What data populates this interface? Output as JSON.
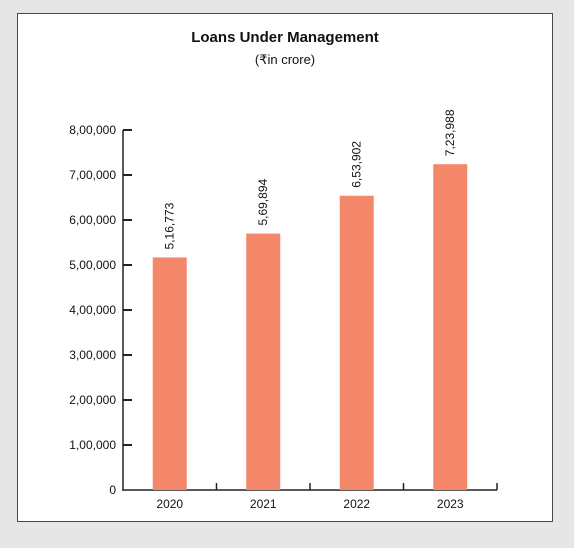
{
  "chart_data": {
    "type": "bar",
    "title": "Loans Under Management",
    "subtitle": "(₹in crore)",
    "categories": [
      "2020",
      "2021",
      "2022",
      "2023"
    ],
    "values": [
      516773,
      569894,
      653902,
      723988
    ],
    "value_labels": [
      "5,16,773",
      "5,69,894",
      "6,53,902",
      "7,23,988"
    ],
    "y_ticks": [
      0,
      100000,
      200000,
      300000,
      400000,
      500000,
      600000,
      700000,
      800000
    ],
    "y_tick_labels": [
      "0",
      "1,00,000",
      "2,00,000",
      "3,00,000",
      "4,00,000",
      "5,00,000",
      "6,00,000",
      "7,00,000",
      "8,00,000"
    ],
    "ylim": [
      0,
      800000
    ],
    "grid": false,
    "legend": "none",
    "xlabel": "",
    "ylabel": "",
    "colors": {
      "bar": "#f4876a",
      "axis": "#222222",
      "border": "#4a4a4a",
      "background": "#e6e6e6"
    }
  }
}
